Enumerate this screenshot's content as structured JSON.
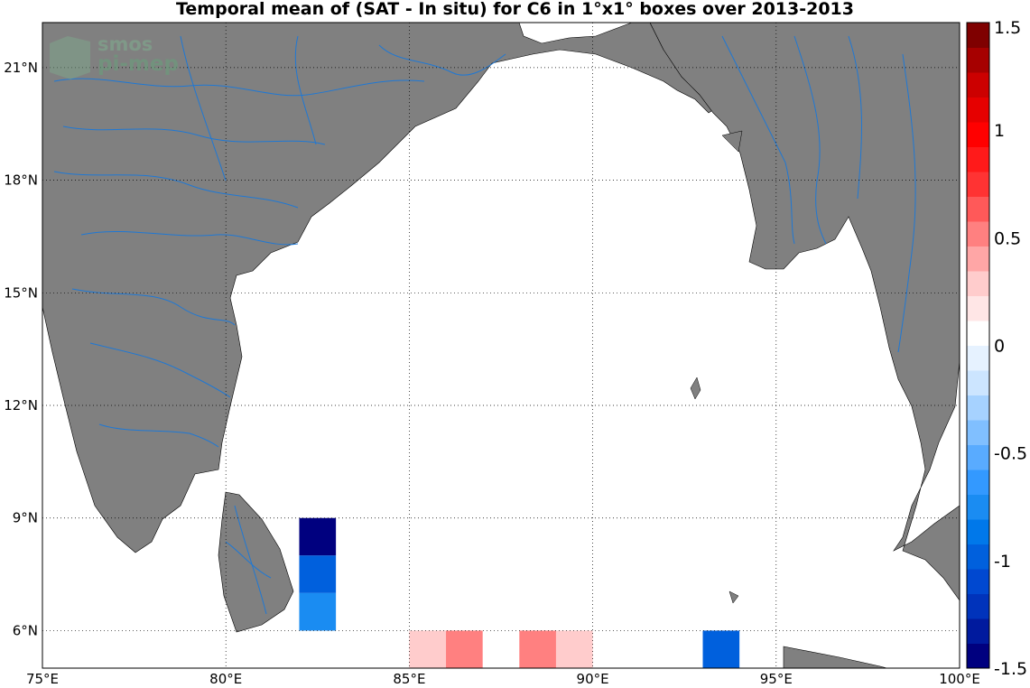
{
  "title": "Temporal mean of (SAT - In situ) for C6 in 1°x1° boxes over 2013-2013",
  "watermark": {
    "line1": "smos",
    "line2": "pi-mep"
  },
  "map": {
    "lon_range": [
      75,
      100
    ],
    "lat_range": [
      5,
      22.2
    ],
    "land_color": "#808080",
    "ocean_color": "#ffffff",
    "river_color": "#1f78d4",
    "grid": "dotted",
    "lon_ticks": [
      {
        "value": 75,
        "label": "75°E"
      },
      {
        "value": 80,
        "label": "80°E"
      },
      {
        "value": 85,
        "label": "85°E"
      },
      {
        "value": 90,
        "label": "90°E"
      },
      {
        "value": 95,
        "label": "95°E"
      },
      {
        "value": 100,
        "label": "100°E"
      }
    ],
    "lat_ticks": [
      {
        "value": 6,
        "label": "6°N"
      },
      {
        "value": 9,
        "label": "9°N"
      },
      {
        "value": 12,
        "label": "12°N"
      },
      {
        "value": 15,
        "label": "15°N"
      },
      {
        "value": 18,
        "label": "18°N"
      },
      {
        "value": 21,
        "label": "21°N"
      }
    ]
  },
  "chart_data": {
    "type": "heatmap",
    "title": "Temporal mean of (SAT - In situ) for C6 in 1°x1° boxes over 2013-2013",
    "cell_size_deg": 1,
    "cells": [
      {
        "lon": 82,
        "lat": 8,
        "value": -1.45
      },
      {
        "lon": 82,
        "lat": 7,
        "value": -0.95
      },
      {
        "lon": 82,
        "lat": 6,
        "value": -0.7
      },
      {
        "lon": 85,
        "lat": 5,
        "value": 0.25
      },
      {
        "lon": 86,
        "lat": 5,
        "value": 0.55
      },
      {
        "lon": 88,
        "lat": 5,
        "value": 0.55
      },
      {
        "lon": 89,
        "lat": 5,
        "value": 0.25
      },
      {
        "lon": 93,
        "lat": 5,
        "value": -0.95
      }
    ],
    "colorbar": {
      "range": [
        -1.5,
        1.5
      ],
      "ticks": [
        {
          "value": 1.5,
          "label": "1.5"
        },
        {
          "value": 1,
          "label": "1"
        },
        {
          "value": 0.5,
          "label": "0.5"
        },
        {
          "value": 0,
          "label": "0"
        },
        {
          "value": -0.5,
          "label": "-0.5"
        },
        {
          "value": -1,
          "label": "-1"
        },
        {
          "value": -1.5,
          "label": "-1.5"
        }
      ],
      "colors": [
        "#00007f",
        "#001a9e",
        "#0033bb",
        "#0048d0",
        "#0060dd",
        "#0078ea",
        "#1a8cf2",
        "#3399ff",
        "#59abff",
        "#80bfff",
        "#a6d2ff",
        "#cce5ff",
        "#e6f2ff",
        "#ffffff",
        "#ffe6e6",
        "#ffcccc",
        "#ffa6a6",
        "#ff8080",
        "#ff5959",
        "#ff3333",
        "#ff1a1a",
        "#ff0000",
        "#e60000",
        "#cc0000",
        "#a60000",
        "#7f0000"
      ]
    }
  }
}
